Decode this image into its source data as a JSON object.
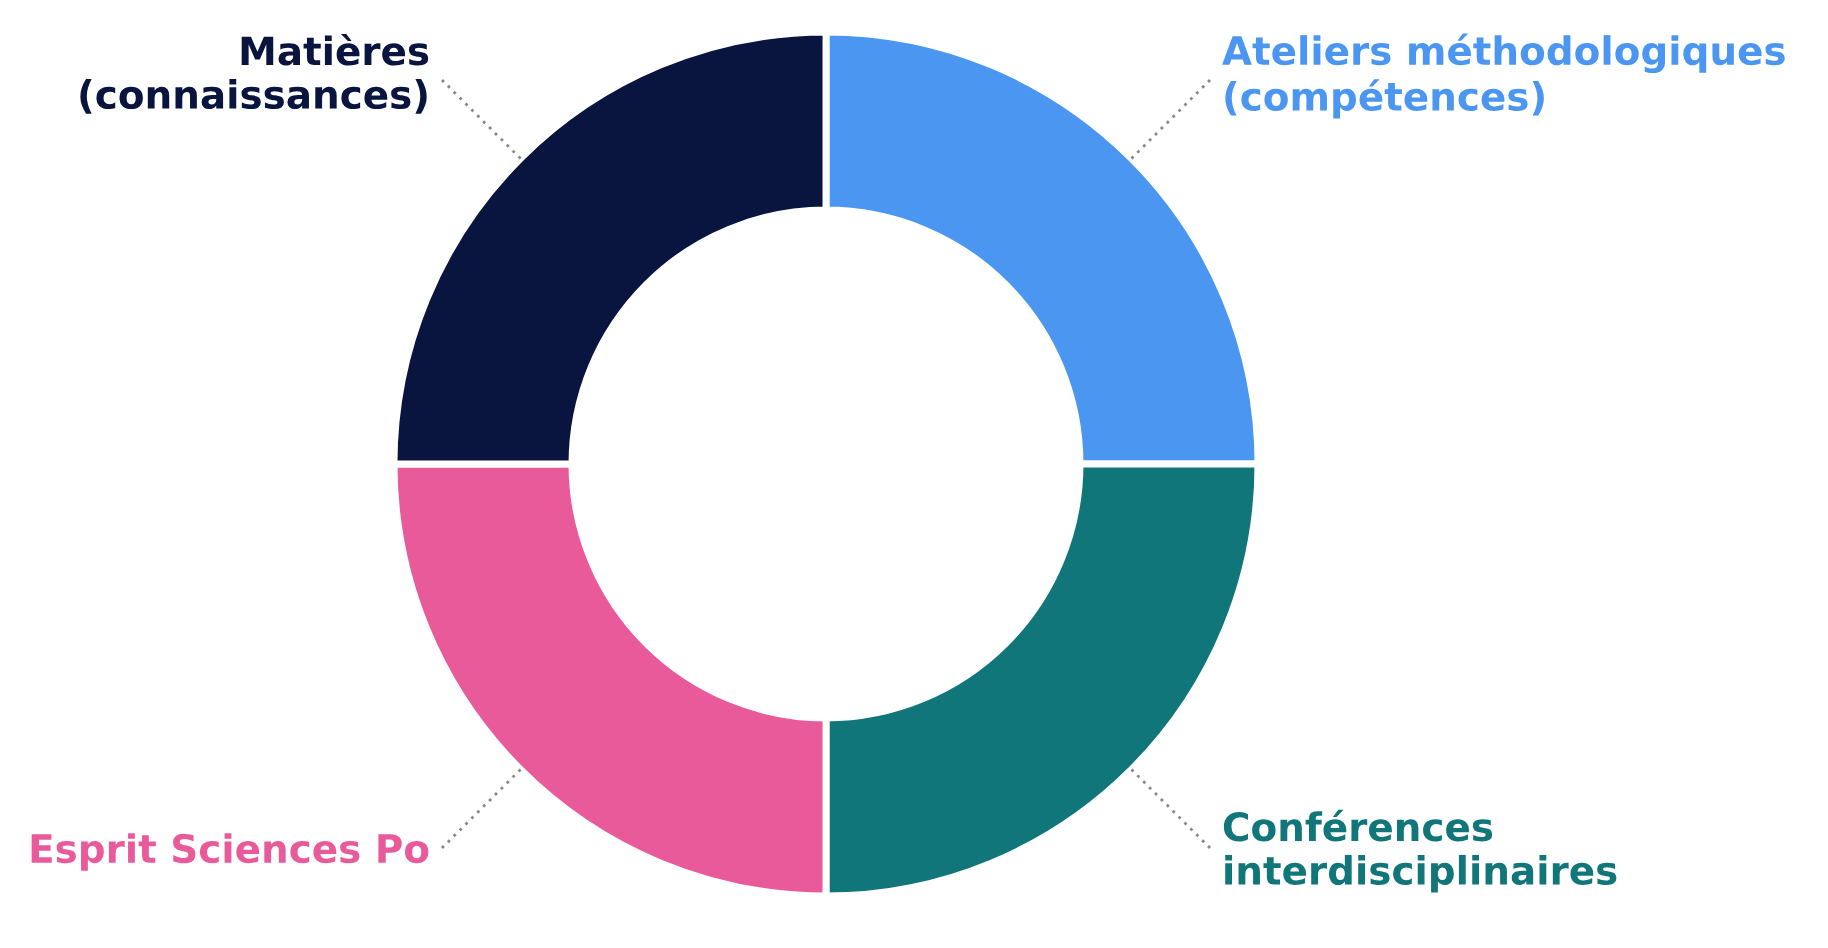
{
  "chart_data": {
    "type": "donut",
    "categories": [
      "Ateliers méthodologiques\n(compétences)",
      "Conférences\ninterdisciplinaires",
      "Esprit Sciences Po",
      "Matières\n(connaissances)"
    ],
    "values": [
      25,
      25,
      25,
      25
    ],
    "colors": [
      "#4a96f0",
      "#11767a",
      "#e95a9a",
      "#09153f"
    ]
  }
}
